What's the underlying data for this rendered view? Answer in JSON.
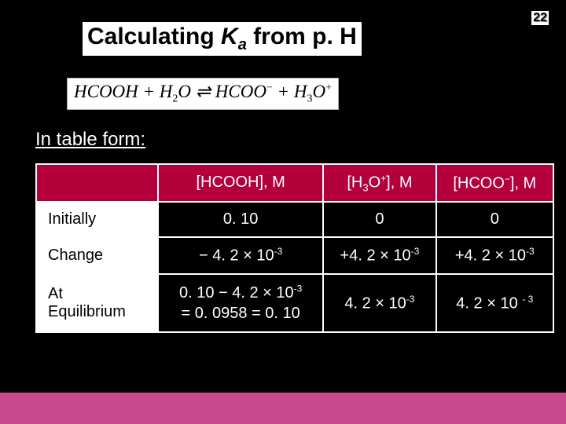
{
  "page_number": "22",
  "title_pre": "Calculating ",
  "title_k": "K",
  "title_a": "a",
  "title_post": " from p. H",
  "equation_html": "HCOOH + H<sub>2</sub>O &#8652; HCOO<sup>&minus;</sup> + H<sub>3</sub>O<sup>+</sup>",
  "intro": "In table form:",
  "table": {
    "headers": [
      "[HCOOH], M",
      "[H<sub>3</sub>O<sup>+</sup>], M",
      "[HCOO<sup>&minus;</sup>], M"
    ],
    "rows": [
      {
        "label": "Initially",
        "cells": [
          "0. 10",
          "0",
          "0"
        ]
      },
      {
        "label": "Change",
        "cells": [
          "&minus; 4. 2 <span class='mult'>&times;</span> 10<sup>-3</sup>",
          "+4. 2 <span class='mult'>&times;</span> 10<sup>-3</sup>",
          "+4. 2 <span class='mult'>&times;</span> 10<sup>-3</sup>"
        ]
      },
      {
        "label": "At<br>Equilibrium",
        "cells": [
          "<div class='stack'>0. 10 &minus; 4. 2 <span class='mult'>&times;</span> 10<sup>-3</sup><br>= 0. 0958 = 0. 10</div>",
          "4. 2 <span class='mult'>&times;</span> 10<sup>-3</sup>",
          "4. 2 <span class='mult'>&times;</span> 10 <sup>- 3</sup>"
        ]
      }
    ]
  },
  "colors": {
    "bg": "#000000",
    "header_bg": "#b3003b",
    "bottom_bar": "#c94a8f",
    "text_white": "#ffffff"
  }
}
